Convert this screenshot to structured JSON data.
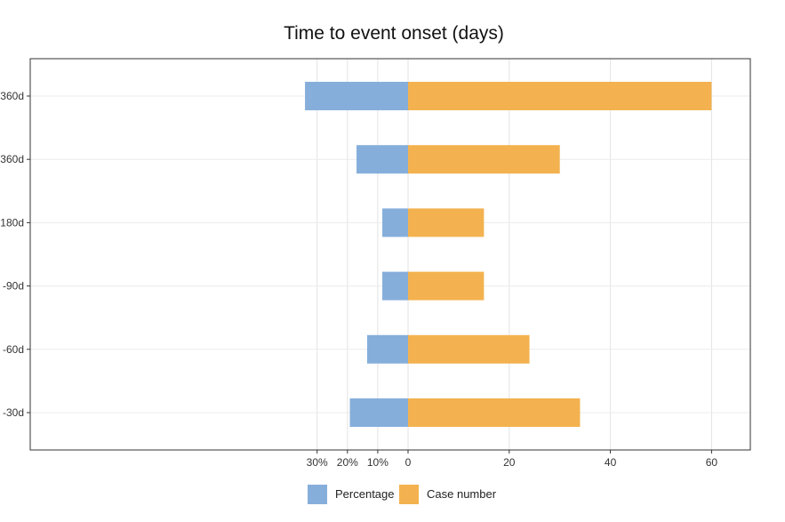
{
  "chart_data": {
    "type": "bar",
    "orientation": "horizontal-diverging",
    "title": "Time to event onset (days)",
    "categories": [
      "360d",
      "360d",
      "180d",
      "-90d",
      "-60d",
      "-30d"
    ],
    "series": [
      {
        "name": "Percentage",
        "values": [
          34,
          17,
          8.5,
          8.5,
          13.5,
          19.2
        ],
        "unit": "%",
        "side": "left",
        "color": "#86aedb"
      },
      {
        "name": "Case number",
        "values": [
          60,
          30,
          15,
          15,
          24,
          34
        ],
        "side": "right",
        "color": "#f3b24f"
      }
    ],
    "left_axis": {
      "range": [
        0,
        36
      ],
      "ticks": [
        30,
        20,
        10,
        0
      ],
      "tick_labels": [
        "30%",
        "20%",
        "10%",
        "0"
      ]
    },
    "right_axis": {
      "range": [
        0,
        67.8
      ],
      "ticks": [
        20,
        40,
        60
      ],
      "tick_labels": [
        "20",
        "40",
        "60"
      ]
    },
    "grid": true,
    "legend_position": "bottom"
  }
}
